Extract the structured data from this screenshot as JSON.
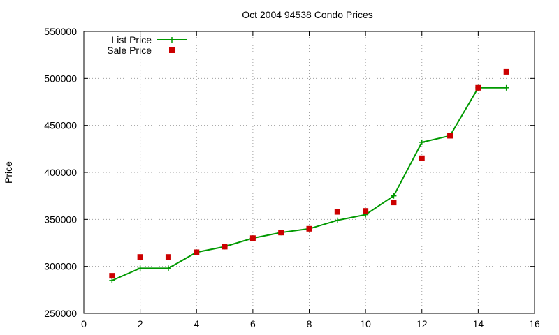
{
  "chart_data": {
    "type": "line",
    "title": "Oct 2004 94538 Condo Prices",
    "xlabel": "",
    "ylabel": "Price",
    "xlim": [
      0,
      16
    ],
    "ylim": [
      250000,
      550000
    ],
    "x_ticks": [
      0,
      2,
      4,
      6,
      8,
      10,
      12,
      14,
      16
    ],
    "y_ticks": [
      250000,
      300000,
      350000,
      400000,
      450000,
      500000,
      550000
    ],
    "grid": true,
    "legend_position": "top-left",
    "series": [
      {
        "name": "List Price",
        "style": "line+cross",
        "color": "#009900",
        "x": [
          1,
          2,
          3,
          4,
          5,
          6,
          7,
          8,
          9,
          10,
          11,
          12,
          13,
          14,
          15
        ],
        "y": [
          285000,
          298000,
          298000,
          315000,
          321000,
          330000,
          336000,
          340000,
          349000,
          355000,
          375000,
          432000,
          439000,
          490000,
          490000
        ]
      },
      {
        "name": "Sale Price",
        "style": "square",
        "color": "#cc0000",
        "x": [
          1,
          2,
          3,
          4,
          5,
          6,
          7,
          8,
          9,
          10,
          11,
          12,
          13,
          14,
          15
        ],
        "y": [
          290000,
          310000,
          310000,
          315000,
          321000,
          330000,
          336000,
          340000,
          358000,
          359000,
          368000,
          415000,
          439000,
          490000,
          507000
        ]
      }
    ]
  }
}
